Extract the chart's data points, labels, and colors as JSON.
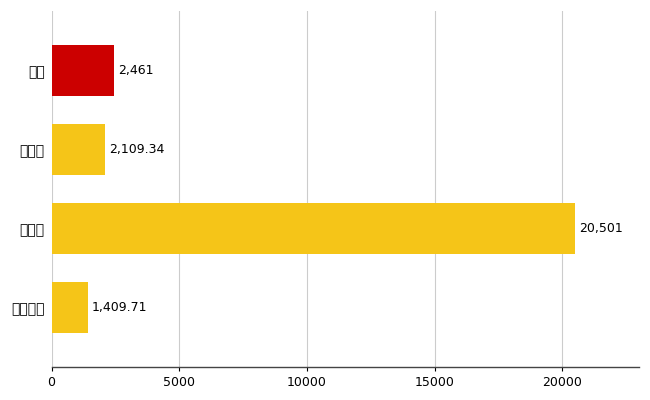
{
  "categories": [
    "燕市",
    "県平均",
    "県最大",
    "全国平均"
  ],
  "values": [
    2461,
    2109.34,
    20501,
    1409.71
  ],
  "bar_colors": [
    "#cc0000",
    "#f5c518",
    "#f5c518",
    "#f5c518"
  ],
  "labels": [
    "2,461",
    "2,109.34",
    "20,501",
    "1,409.71"
  ],
  "xlim": [
    0,
    23000
  ],
  "xticks": [
    0,
    5000,
    10000,
    15000,
    20000
  ],
  "xtick_labels": [
    "0",
    "5000",
    "10000",
    "15000",
    "20000"
  ],
  "background_color": "#ffffff",
  "grid_color": "#cccccc",
  "bar_height": 0.65,
  "label_fontsize": 9,
  "tick_fontsize": 9,
  "ytick_fontsize": 10
}
